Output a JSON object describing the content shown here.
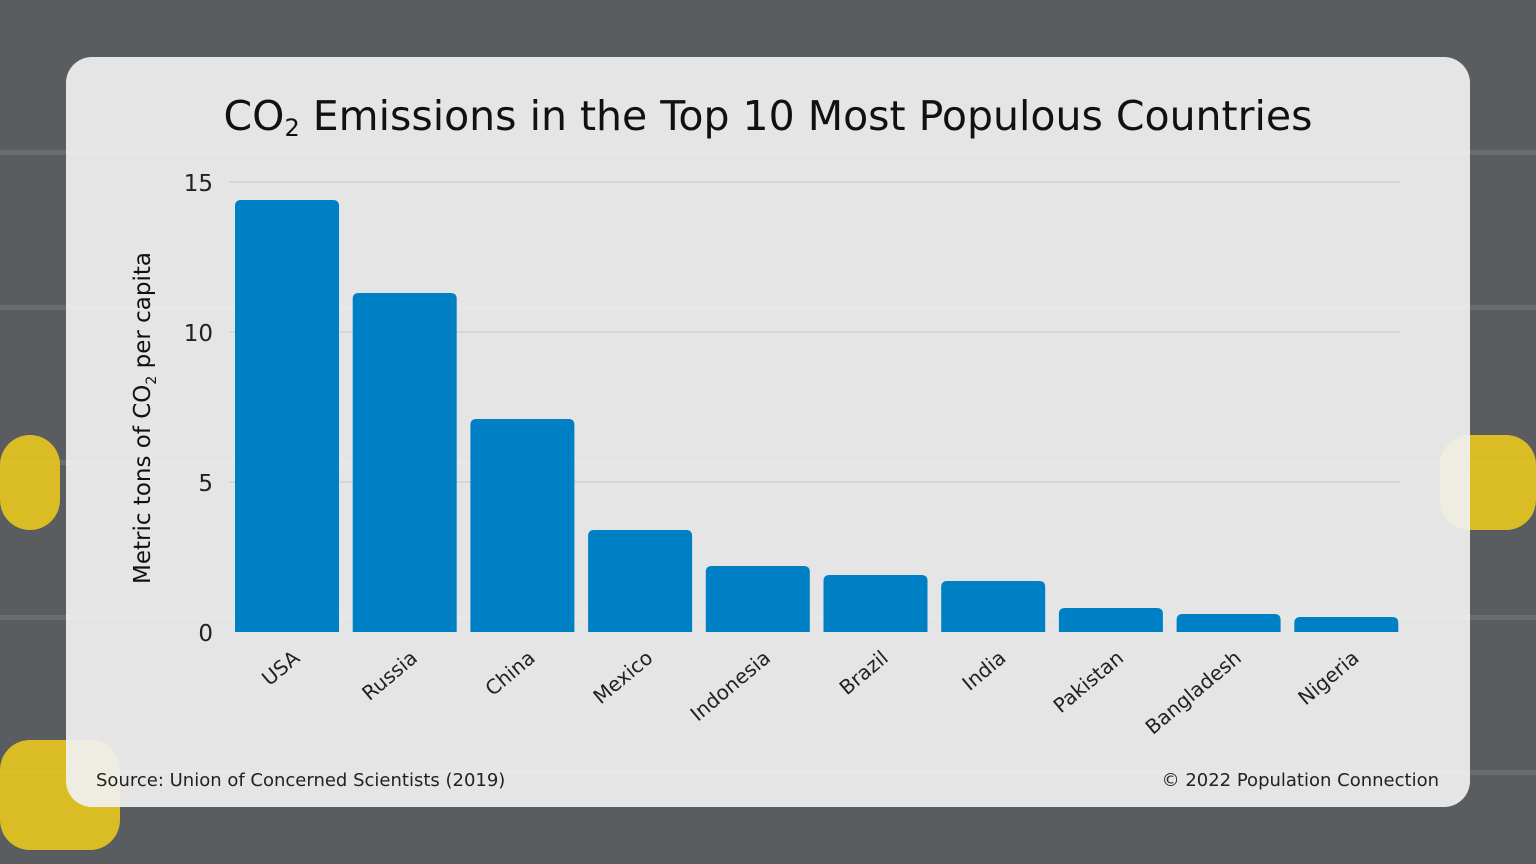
{
  "chart_data": {
    "type": "bar",
    "title": "CO₂ Emissions in the Top 10 Most Populous Countries",
    "title_parts": {
      "pre": "CO",
      "sub": "2",
      "post": " Emissions in the Top 10 Most Populous Countries"
    },
    "ylabel": "Metric tons of CO₂ per capita",
    "ylabel_parts": {
      "pre": "Metric tons of CO",
      "sub": "2",
      "post": " per capita"
    },
    "xlabel": "",
    "categories": [
      "USA",
      "Russia",
      "China",
      "Mexico",
      "Indonesia",
      "Brazil",
      "India",
      "Pakistan",
      "Bangladesh",
      "Nigeria"
    ],
    "values": [
      14.4,
      11.3,
      7.1,
      3.4,
      2.2,
      1.9,
      1.7,
      0.8,
      0.6,
      0.5
    ],
    "ylim": [
      0,
      15
    ],
    "yticks": [
      0,
      5,
      10,
      15
    ],
    "grid": true,
    "legend": "none",
    "bar_color": "#0080c4"
  },
  "footer": {
    "source": "Source: Union of Concerned Scientists (2019)",
    "copyright": "© 2022 Population Connection"
  }
}
